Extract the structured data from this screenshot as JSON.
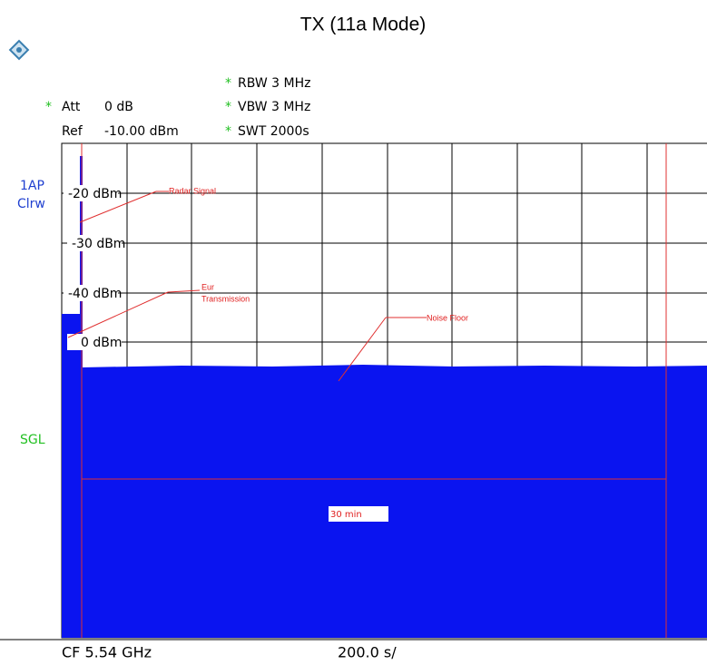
{
  "title": "TX (11a Mode)",
  "settings": {
    "rbw": "RBW 3 MHz",
    "att": "Att",
    "att_value": "0 dB",
    "vbw": "VBW 3 MHz",
    "ref": "Ref",
    "ref_value": "-10.00 dBm",
    "swt": "SWT 2000s",
    "star": "*"
  },
  "side_labels": {
    "trace": "1AP",
    "mode": "Clrw",
    "sweep": "SGL"
  },
  "level_labels": [
    "-20 dBm",
    "-30 dBm",
    "-40 dBm",
    "0 dBm"
  ],
  "annotations": {
    "radar": "Radar Signal",
    "eur_1": "Eur",
    "eur_2": "Transmission",
    "noise": "Noise Floor"
  },
  "marker_box": "30 min",
  "footer": {
    "center": "CF 5.54 GHz",
    "span": "200.0 s/"
  }
}
